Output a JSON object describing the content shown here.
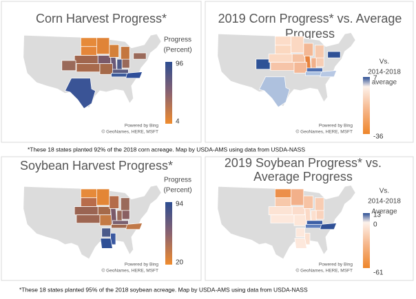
{
  "panels": [
    {
      "title": [
        "Corn Harvest Progress*"
      ],
      "legend": {
        "title": [
          "Progress",
          "(Percent)"
        ],
        "ticks": [
          96,
          4
        ]
      },
      "credit": [
        "Powered by Bing",
        "© GeoNames, HERE, MSFT"
      ]
    },
    {
      "title": [
        "2019 Corn Progress* vs. Average",
        "Progress"
      ],
      "legend": {
        "title": [
          "Vs.",
          "2014-2018",
          "average"
        ],
        "ticks": [
          7,
          -36
        ]
      },
      "credit": [
        "Powered by Bing",
        "© GeoNames, HERE, MSFT"
      ]
    },
    {
      "title": [
        "Soybean Harvest Progress*"
      ],
      "legend": {
        "title": [
          "Progress",
          "(Percent)"
        ],
        "ticks": [
          94,
          20
        ]
      },
      "credit": [
        "Powered by Bing",
        "© GeoNames, HERE, MSFT"
      ]
    },
    {
      "title": [
        "2019 Soybean Progress* vs.",
        "Average Progress"
      ],
      "legend": {
        "title": [
          "Vs.",
          "2014-2018",
          "Average"
        ],
        "ticks": [
          13,
          0,
          -61
        ]
      },
      "credit": [
        "Powered by Bing",
        "© GeoNames, HERE, MSFT"
      ]
    }
  ],
  "footnotes": [
    "*These 18 states planted 92% of the 2018 corn acreage. Map by USDA-AMS using data from USDA-NASS",
    "*These 18 states planted 95% of the 2018 soybean acreage. Map by USDA-AMS using data from USDA-NASS"
  ]
}
